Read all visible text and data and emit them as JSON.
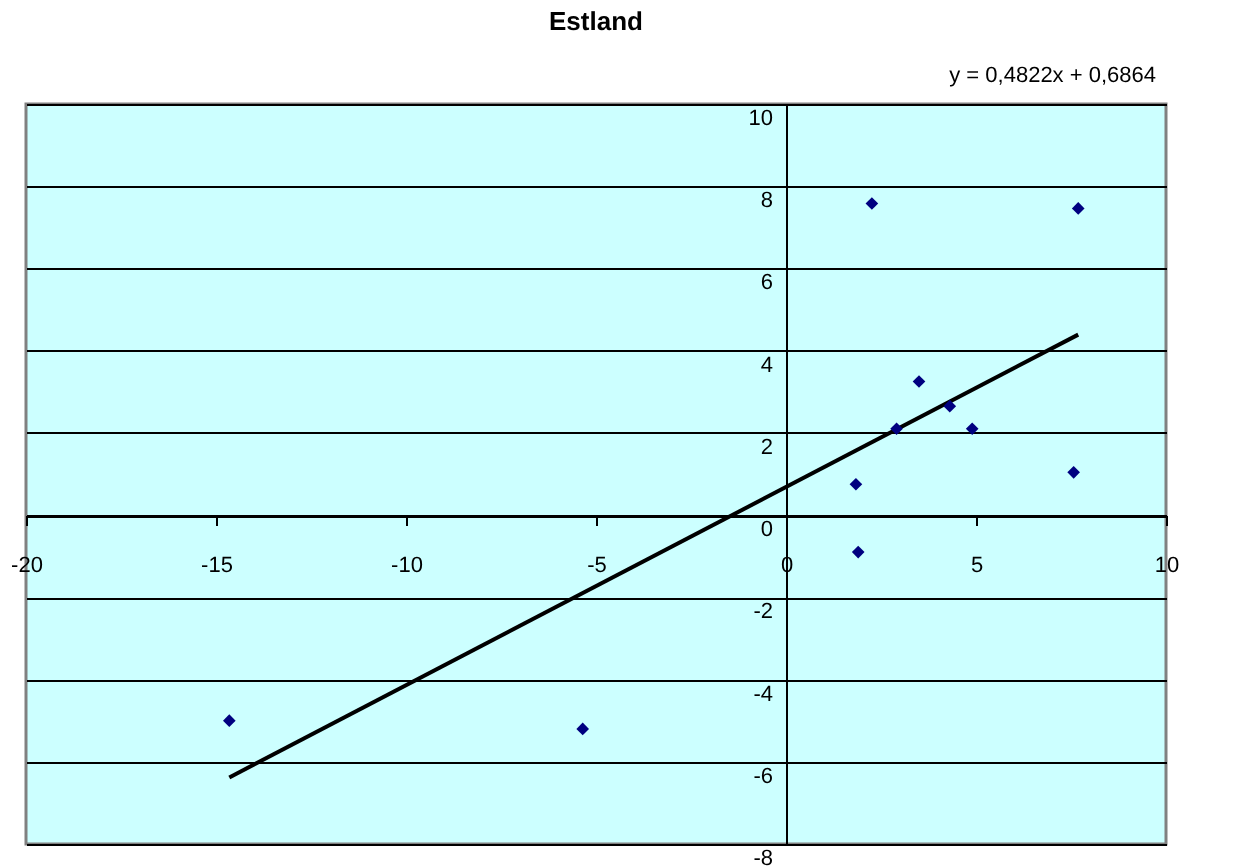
{
  "chart_data": {
    "type": "scatter",
    "title": "Estland",
    "annotations": [
      "y = 0,4822x + 0,6864"
    ],
    "series": [
      {
        "color": "#000080",
        "x": [
          2.26,
          7.69,
          3.5,
          4.31,
          2.91,
          4.9,
          1.84,
          7.57,
          1.9,
          -14.65,
          -5.35
        ],
        "values": [
          7.58,
          7.46,
          3.25,
          2.65,
          2.1,
          2.1,
          0.75,
          1.04,
          -0.9,
          -5.0,
          -5.2
        ]
      },
      {
        "type": "line",
        "color": "#000000",
        "marker": "none",
        "line_style": "solid",
        "x": [
          -14.65,
          7.69
        ],
        "values": [
          -6.38,
          4.39
        ]
      }
    ],
    "xlim": [
      -20,
      10
    ],
    "xticks": [
      -20,
      -15,
      -10,
      -5,
      0,
      5,
      10
    ],
    "ylim": [
      -8,
      10
    ],
    "yticks": [
      -8,
      -6,
      -4,
      -2,
      0,
      2,
      4,
      6,
      8,
      10
    ],
    "grid": "y",
    "marker": "diamond"
  }
}
